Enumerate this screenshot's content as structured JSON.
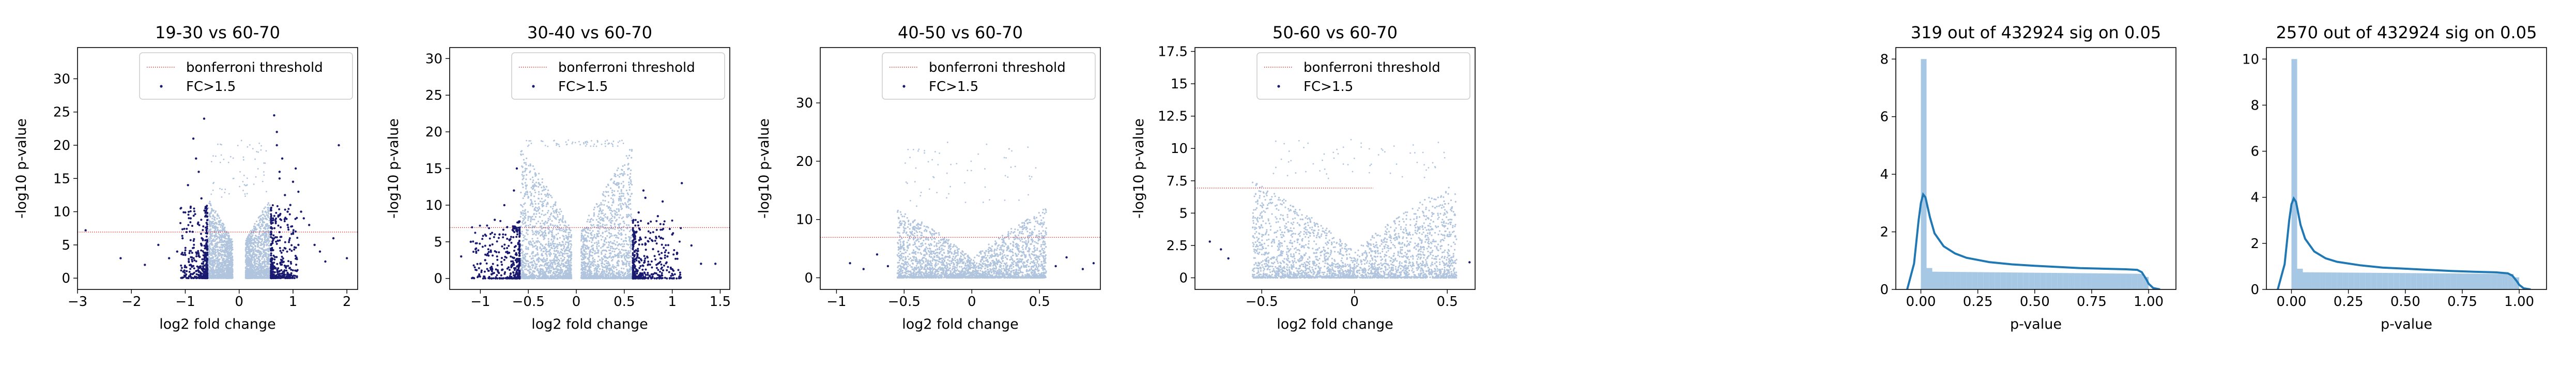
{
  "chart_data": [
    {
      "type": "scatter",
      "title": "19-30 vs 60-70",
      "xlabel": "log2 fold change",
      "ylabel": "-log10 p-value",
      "xlim": [
        -3,
        2.2
      ],
      "ylim": [
        -1.7,
        34.7
      ],
      "xticks": [
        -3,
        -2,
        -1,
        0,
        1,
        2
      ],
      "yticks": [
        0,
        5,
        10,
        15,
        20,
        25,
        30
      ],
      "threshold": 6.94,
      "legend": {
        "placement": "top-right",
        "entries": [
          "bonferroni threshold",
          "FC>1.5"
        ]
      },
      "cloud": {
        "xmin": -0.58,
        "xmax": 0.58,
        "ymax": 12,
        "center_gap": 0.12
      },
      "series": [
        {
          "name": "bonferroni threshold",
          "color": "#d62728",
          "style": "dotted-line"
        },
        {
          "name": "FC>1.5",
          "color": "#191970",
          "x": [
            -2.85,
            -2.2,
            -1.75,
            -1.5,
            -1.3,
            -1.15,
            -1.05,
            -0.95,
            -0.9,
            -0.85,
            -0.8,
            -0.75,
            -0.7,
            -0.65,
            -0.62,
            -0.9,
            -1.0,
            -0.7,
            0.62,
            0.65,
            0.7,
            0.75,
            0.8,
            0.85,
            0.9,
            0.95,
            1.0,
            1.05,
            1.1,
            1.15,
            1.2,
            1.3,
            1.4,
            1.5,
            1.6,
            1.75,
            1.85,
            2.0,
            0.75,
            0.9,
            1.1,
            0.7,
            0.68
          ],
          "y": [
            7.2,
            3.0,
            2.0,
            5.0,
            3.0,
            4.0,
            6.0,
            14.0,
            9.0,
            21.0,
            18.0,
            16.0,
            12.0,
            24.0,
            10.0,
            2.0,
            3.5,
            5.0,
            6.0,
            24.5,
            20.0,
            16.0,
            18.0,
            12.5,
            8.0,
            11.0,
            14.5,
            16.5,
            13.0,
            10.0,
            9.0,
            8.0,
            5.0,
            4.0,
            2.5,
            6.0,
            20.0,
            3.0,
            15.0,
            10.0,
            5.0,
            22.0,
            8.5
          ]
        }
      ]
    },
    {
      "type": "scatter",
      "title": "30-40 vs 60-70",
      "xlabel": "log2 fold change",
      "ylabel": "-log10 p-value",
      "xlim": [
        -1.32,
        1.6
      ],
      "ylim": [
        -1.5,
        31.5
      ],
      "xticks": [
        -1.0,
        -0.5,
        0.0,
        0.5,
        1.0,
        1.5
      ],
      "yticks": [
        0,
        5,
        10,
        15,
        20,
        25,
        30
      ],
      "threshold": 6.94,
      "legend": {
        "placement": "top-right",
        "entries": [
          "bonferroni threshold",
          "FC>1.5"
        ]
      },
      "cloud": {
        "xmin": -0.58,
        "xmax": 0.58,
        "ymax": 18,
        "center_gap": 0.05
      },
      "series": [
        {
          "name": "bonferroni threshold",
          "color": "#d62728",
          "style": "dotted-line"
        },
        {
          "name": "FC>1.5",
          "color": "#191970",
          "x": [
            -1.2,
            -1.1,
            -1.0,
            -0.9,
            -0.85,
            -0.8,
            -0.75,
            -0.7,
            -0.65,
            -0.62,
            -0.95,
            -1.05,
            -0.72,
            0.62,
            0.65,
            0.7,
            0.75,
            0.8,
            0.85,
            0.9,
            0.95,
            1.0,
            1.1,
            1.2,
            1.3,
            1.45,
            0.72,
            0.88,
            1.05
          ],
          "y": [
            3.0,
            5.0,
            2.0,
            4.5,
            8.0,
            6.0,
            10.0,
            3.5,
            12.0,
            15.0,
            2.5,
            4.0,
            7.0,
            5.0,
            9.0,
            12.0,
            7.5,
            4.0,
            8.5,
            10.5,
            3.0,
            6.0,
            13.0,
            4.5,
            2.0,
            2.0,
            11.0,
            5.5,
            3.5
          ]
        }
      ]
    },
    {
      "type": "scatter",
      "title": "40-50 vs 60-70",
      "xlabel": "log2 fold change",
      "ylabel": "-log10 p-value",
      "xlim": [
        -1.12,
        0.95
      ],
      "ylim": [
        -2,
        39.5
      ],
      "xticks": [
        -1.0,
        -0.5,
        0.0,
        0.5
      ],
      "yticks": [
        0,
        10,
        20,
        30
      ],
      "threshold": 6.94,
      "legend": {
        "placement": "top-right",
        "entries": [
          "bonferroni threshold",
          "FC>1.5"
        ]
      },
      "cloud": {
        "xmin": -0.55,
        "xmax": 0.55,
        "ymax": 12,
        "center_gap": 0
      },
      "series": [
        {
          "name": "bonferroni threshold",
          "color": "#d62728",
          "style": "dotted-line"
        },
        {
          "name": "FC>1.5",
          "color": "#191970",
          "x": [
            -0.9,
            -0.8,
            -0.7,
            -0.62,
            0.62,
            0.7,
            0.82,
            0.9
          ],
          "y": [
            2.5,
            1.5,
            4.0,
            2.0,
            2.0,
            3.5,
            1.5,
            2.5
          ]
        }
      ]
    },
    {
      "type": "scatter",
      "title": "50-60 vs 60-70",
      "xlabel": "log2 fold change",
      "ylabel": "-log10 p-value",
      "xlim": [
        -0.86,
        0.65
      ],
      "ylim": [
        -0.9,
        17.8
      ],
      "xticks": [
        -0.5,
        0.0,
        0.5
      ],
      "yticks": [
        0.0,
        2.5,
        5.0,
        7.5,
        10.0,
        12.5,
        15.0,
        17.5
      ],
      "threshold": 6.94,
      "threshold_xrange": [
        -0.86,
        0.1
      ],
      "legend": {
        "placement": "top-right",
        "entries": [
          "bonferroni threshold",
          "FC>1.5"
        ]
      },
      "cloud": {
        "xmin": -0.55,
        "xmax": 0.55,
        "ymax": 7.5,
        "center_gap": 0
      },
      "series": [
        {
          "name": "bonferroni threshold",
          "color": "#d62728",
          "style": "dotted-line"
        },
        {
          "name": "FC>1.5",
          "color": "#191970",
          "x": [
            -0.78,
            -0.72,
            -0.68,
            0.62
          ],
          "y": [
            2.8,
            2.2,
            1.5,
            1.2
          ]
        }
      ]
    },
    {
      "type": "area",
      "title": "319 out of 432924 sig on 0.05",
      "xlabel": "p-value",
      "ylabel": "",
      "xlim": [
        -0.11,
        1.12
      ],
      "ylim": [
        0,
        8.4
      ],
      "xticks": [
        "0.00",
        "0.25",
        "0.50",
        "0.75",
        "1.00"
      ],
      "xtick_values": [
        0,
        0.25,
        0.5,
        0.75,
        1.0
      ],
      "yticks": [
        0,
        2,
        4,
        6,
        8
      ],
      "bar_color": "#a6c8e4",
      "line_color": "#1f77b4",
      "hist": {
        "bin_width": 0.025,
        "first_bin": 8.0,
        "rest": 0.62
      },
      "kde": {
        "x": [
          -0.06,
          -0.03,
          -0.01,
          0.0,
          0.01,
          0.02,
          0.04,
          0.06,
          0.1,
          0.15,
          0.2,
          0.3,
          0.4,
          0.5,
          0.6,
          0.7,
          0.8,
          0.9,
          0.95,
          0.97,
          0.99,
          1.0,
          1.02,
          1.05
        ],
        "y": [
          0,
          0.9,
          2.4,
          3.0,
          3.3,
          3.2,
          2.5,
          1.95,
          1.5,
          1.25,
          1.1,
          0.95,
          0.87,
          0.82,
          0.78,
          0.74,
          0.72,
          0.7,
          0.68,
          0.6,
          0.35,
          0.2,
          0.05,
          0
        ]
      }
    },
    {
      "type": "area",
      "title": "2570 out of 432924 sig on 0.05",
      "xlabel": "p-value",
      "ylabel": "",
      "xlim": [
        -0.11,
        1.12
      ],
      "ylim": [
        0,
        10.5
      ],
      "xticks": [
        "0.00",
        "0.25",
        "0.50",
        "0.75",
        "1.00"
      ],
      "xtick_values": [
        0,
        0.25,
        0.5,
        0.75,
        1.0
      ],
      "yticks": [
        0,
        2,
        4,
        6,
        8,
        10
      ],
      "bar_color": "#a6c8e4",
      "line_color": "#1f77b4",
      "hist": {
        "bin_width": 0.025,
        "first_bin": 10.0,
        "rest": 0.75
      },
      "kde": {
        "x": [
          -0.06,
          -0.03,
          -0.01,
          0.0,
          0.01,
          0.02,
          0.04,
          0.06,
          0.1,
          0.15,
          0.2,
          0.3,
          0.4,
          0.5,
          0.6,
          0.7,
          0.8,
          0.9,
          0.95,
          0.97,
          0.99,
          1.0,
          1.02,
          1.05
        ],
        "y": [
          0,
          1.1,
          3.0,
          3.7,
          3.95,
          3.8,
          2.8,
          2.2,
          1.65,
          1.35,
          1.2,
          1.05,
          0.95,
          0.9,
          0.85,
          0.8,
          0.77,
          0.74,
          0.7,
          0.6,
          0.35,
          0.2,
          0.05,
          0
        ]
      }
    }
  ]
}
